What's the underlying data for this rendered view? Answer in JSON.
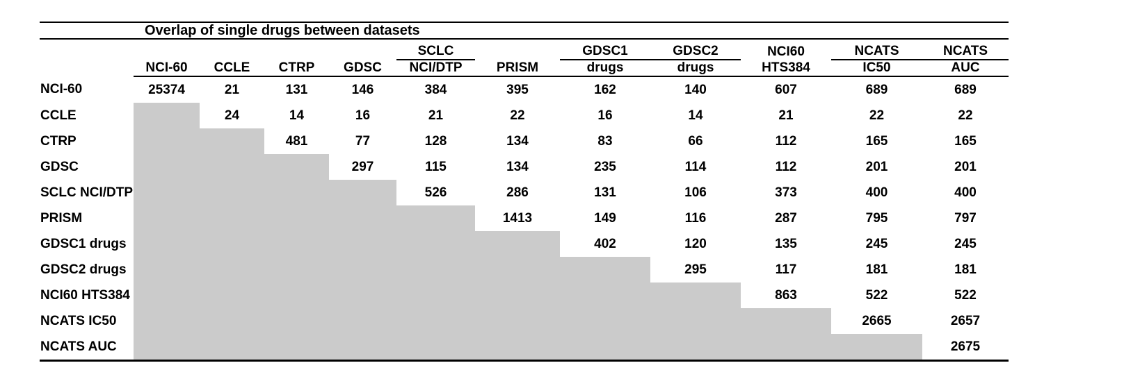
{
  "table": {
    "title": "Overlap of single drugs between datasets",
    "columns": [
      {
        "id": "nci-60",
        "top": "",
        "bottom": "NCI-60",
        "group_underline": false
      },
      {
        "id": "ccle",
        "top": "",
        "bottom": "CCLE",
        "group_underline": false
      },
      {
        "id": "ctrp",
        "top": "",
        "bottom": "CTRP",
        "group_underline": false
      },
      {
        "id": "gdsc",
        "top": "",
        "bottom": "GDSC",
        "group_underline": false
      },
      {
        "id": "sclc-nci-dtp",
        "top": "SCLC",
        "bottom": "NCI/DTP",
        "group_underline": true
      },
      {
        "id": "prism",
        "top": "",
        "bottom": "PRISM",
        "group_underline": false
      },
      {
        "id": "gdsc1-drugs",
        "top": "GDSC1",
        "bottom": "drugs",
        "group_underline": true
      },
      {
        "id": "gdsc2-drugs",
        "top": "GDSC2",
        "bottom": "drugs",
        "group_underline": true
      },
      {
        "id": "nci60-hts384",
        "top": "NCI60",
        "bottom": "HTS384",
        "group_underline": false
      },
      {
        "id": "ncats-ic50",
        "top": "NCATS",
        "bottom": "IC50",
        "group_underline": true
      },
      {
        "id": "ncats-auc",
        "top": "NCATS",
        "bottom": "AUC",
        "group_underline": true
      }
    ],
    "colors": {
      "shaded_cell": "#cbcbcb",
      "text": "#000000",
      "rule": "#000000",
      "background": "#ffffff"
    }
  },
  "chart_data": {
    "type": "table",
    "title": "Overlap of single drugs between datasets",
    "row_labels": [
      "NCI-60",
      "CCLE",
      "CTRP",
      "GDSC",
      "SCLC NCI/DTP",
      "PRISM",
      "GDSC1 drugs",
      "GDSC2 drugs",
      "NCI60 HTS384",
      "NCATS IC50",
      "NCATS AUC"
    ],
    "col_labels": [
      "NCI-60",
      "CCLE",
      "CTRP",
      "GDSC",
      "SCLC NCI/DTP",
      "PRISM",
      "GDSC1 drugs",
      "GDSC2 drugs",
      "NCI60 HTS384",
      "NCATS IC50",
      "NCATS AUC"
    ],
    "matrix": [
      [
        25374,
        21,
        131,
        146,
        384,
        395,
        162,
        140,
        607,
        689,
        689
      ],
      [
        null,
        24,
        14,
        16,
        21,
        22,
        16,
        14,
        21,
        22,
        22
      ],
      [
        null,
        null,
        481,
        77,
        128,
        134,
        83,
        66,
        112,
        165,
        165
      ],
      [
        null,
        null,
        null,
        297,
        115,
        134,
        235,
        114,
        112,
        201,
        201
      ],
      [
        null,
        null,
        null,
        null,
        526,
        286,
        131,
        106,
        373,
        400,
        400
      ],
      [
        null,
        null,
        null,
        null,
        null,
        1413,
        149,
        116,
        287,
        795,
        797
      ],
      [
        null,
        null,
        null,
        null,
        null,
        null,
        402,
        120,
        135,
        245,
        245
      ],
      [
        null,
        null,
        null,
        null,
        null,
        null,
        null,
        295,
        117,
        181,
        181
      ],
      [
        null,
        null,
        null,
        null,
        null,
        null,
        null,
        null,
        863,
        522,
        522
      ],
      [
        null,
        null,
        null,
        null,
        null,
        null,
        null,
        null,
        null,
        2665,
        2657
      ],
      [
        null,
        null,
        null,
        null,
        null,
        null,
        null,
        null,
        null,
        null,
        2675
      ]
    ],
    "layout": "upper-triangular matrix; cells below the diagonal are shaded gray with no value"
  }
}
